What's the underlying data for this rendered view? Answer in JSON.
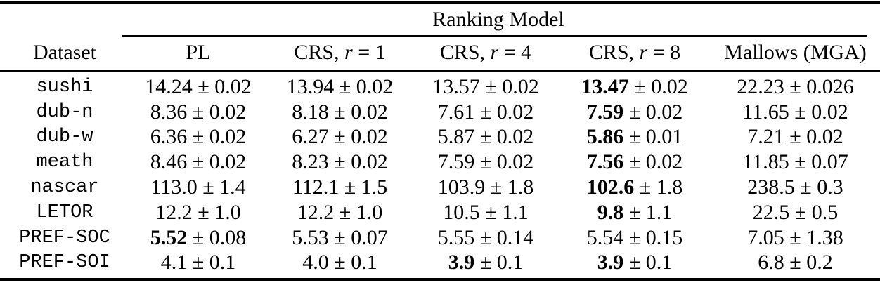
{
  "colors": {
    "text": "#000000",
    "background": "#ffffff",
    "rule": "#000000"
  },
  "table": {
    "group_header": "Ranking Model",
    "plus_minus": "±",
    "columns": [
      {
        "label": "Dataset"
      },
      {
        "label": "PL"
      },
      {
        "prefix": "CRS, ",
        "var": "r",
        "suffix": " = 1"
      },
      {
        "prefix": "CRS, ",
        "var": "r",
        "suffix": " = 4"
      },
      {
        "prefix": "CRS, ",
        "var": "r",
        "suffix": " = 8"
      },
      {
        "label": "Mallows (MGA)"
      }
    ],
    "rows": [
      {
        "dataset": "sushi",
        "cells": [
          {
            "v": "14.24",
            "e": "0.02",
            "b": false
          },
          {
            "v": "13.94",
            "e": "0.02",
            "b": false
          },
          {
            "v": "13.57",
            "e": "0.02",
            "b": false
          },
          {
            "v": "13.47",
            "e": "0.02",
            "b": true
          },
          {
            "v": "22.23",
            "e": "0.026",
            "b": false
          }
        ]
      },
      {
        "dataset": "dub-n",
        "cells": [
          {
            "v": "8.36",
            "e": "0.02",
            "b": false
          },
          {
            "v": "8.18",
            "e": "0.02",
            "b": false
          },
          {
            "v": "7.61",
            "e": "0.02",
            "b": false
          },
          {
            "v": "7.59",
            "e": "0.02",
            "b": true
          },
          {
            "v": "11.65",
            "e": "0.02",
            "b": false
          }
        ]
      },
      {
        "dataset": "dub-w",
        "cells": [
          {
            "v": "6.36",
            "e": "0.02",
            "b": false
          },
          {
            "v": "6.27",
            "e": "0.02",
            "b": false
          },
          {
            "v": "5.87",
            "e": "0.02",
            "b": false
          },
          {
            "v": "5.86",
            "e": "0.01",
            "b": true
          },
          {
            "v": "7.21",
            "e": "0.02",
            "b": false
          }
        ]
      },
      {
        "dataset": "meath",
        "cells": [
          {
            "v": "8.46",
            "e": "0.02",
            "b": false
          },
          {
            "v": "8.23",
            "e": "0.02",
            "b": false
          },
          {
            "v": "7.59",
            "e": "0.02",
            "b": false
          },
          {
            "v": "7.56",
            "e": "0.02",
            "b": true
          },
          {
            "v": "11.85",
            "e": "0.07",
            "b": false
          }
        ]
      },
      {
        "dataset": "nascar",
        "cells": [
          {
            "v": "113.0",
            "e": "1.4",
            "b": false
          },
          {
            "v": "112.1",
            "e": "1.5",
            "b": false
          },
          {
            "v": "103.9",
            "e": "1.8",
            "b": false
          },
          {
            "v": "102.6",
            "e": "1.8",
            "b": true
          },
          {
            "v": "238.5",
            "e": "0.3",
            "b": false
          }
        ]
      },
      {
        "dataset": "LETOR",
        "cells": [
          {
            "v": "12.2",
            "e": "1.0",
            "b": false
          },
          {
            "v": "12.2",
            "e": "1.0",
            "b": false
          },
          {
            "v": "10.5",
            "e": "1.1",
            "b": false
          },
          {
            "v": "9.8",
            "e": "1.1",
            "b": true
          },
          {
            "v": "22.5",
            "e": "0.5",
            "b": false
          }
        ]
      },
      {
        "dataset": "PREF-SOC",
        "cells": [
          {
            "v": "5.52",
            "e": "0.08",
            "b": true
          },
          {
            "v": "5.53",
            "e": "0.07",
            "b": false
          },
          {
            "v": "5.55",
            "e": "0.14",
            "b": false
          },
          {
            "v": "5.54",
            "e": "0.15",
            "b": false
          },
          {
            "v": "7.05",
            "e": "1.38",
            "b": false
          }
        ]
      },
      {
        "dataset": "PREF-SOI",
        "cells": [
          {
            "v": "4.1",
            "e": "0.1",
            "b": false
          },
          {
            "v": "4.0",
            "e": "0.1",
            "b": false
          },
          {
            "v": "3.9",
            "e": "0.1",
            "b": true
          },
          {
            "v": "3.9",
            "e": "0.1",
            "b": true
          },
          {
            "v": "6.8",
            "e": "0.2",
            "b": false
          }
        ]
      }
    ]
  }
}
